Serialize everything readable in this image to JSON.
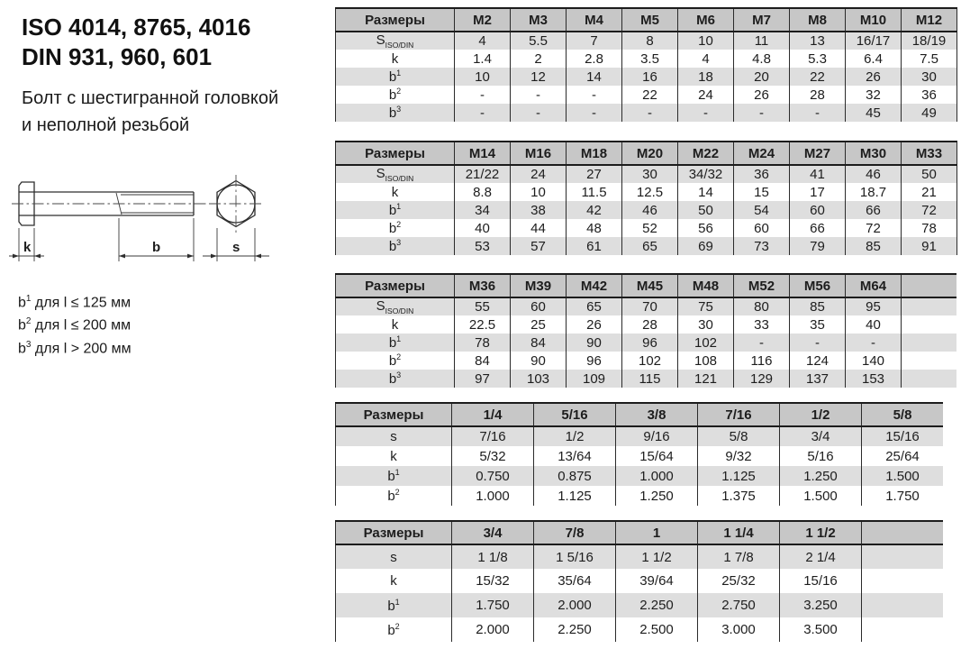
{
  "title": {
    "line1": "ISO 4014, 8765, 4016",
    "line2": "DIN 931, 960, 601"
  },
  "subtitle": {
    "line1": "Болт с шестигранной головкой",
    "line2": "и неполной резьбой"
  },
  "drawing": {
    "dim_k": "k",
    "dim_b": "b",
    "dim_s": "s"
  },
  "notes": [
    {
      "base": "b",
      "sup": "1",
      "text": " для l ≤ 125 мм"
    },
    {
      "base": "b",
      "sup": "2",
      "text": " для l ≤ 200 мм"
    },
    {
      "base": "b",
      "sup": "3",
      "text": " для l > 200 мм"
    }
  ],
  "colors": {
    "header_bg": "#c7c7c7",
    "stripe_bg": "#dedede",
    "border": "#1c1c1c"
  },
  "tables": [
    {
      "header_label": "Размеры",
      "columns": [
        "M2",
        "M3",
        "M4",
        "M5",
        "M6",
        "M7",
        "M8",
        "M10",
        "M12"
      ],
      "trailing_empty_col": false,
      "rows": [
        {
          "label": {
            "base": "S",
            "sub": "ISO/DIN"
          },
          "values": [
            "4",
            "5.5",
            "7",
            "8",
            "10",
            "11",
            "13",
            "16/17",
            "18/19"
          ]
        },
        {
          "label": {
            "base": "k"
          },
          "values": [
            "1.4",
            "2",
            "2.8",
            "3.5",
            "4",
            "4.8",
            "5.3",
            "6.4",
            "7.5"
          ]
        },
        {
          "label": {
            "base": "b",
            "sup": "1"
          },
          "values": [
            "10",
            "12",
            "14",
            "16",
            "18",
            "20",
            "22",
            "26",
            "30"
          ]
        },
        {
          "label": {
            "base": "b",
            "sup": "2"
          },
          "values": [
            "-",
            "-",
            "-",
            "22",
            "24",
            "26",
            "28",
            "32",
            "36"
          ]
        },
        {
          "label": {
            "base": "b",
            "sup": "3"
          },
          "values": [
            "-",
            "-",
            "-",
            "-",
            "-",
            "-",
            "-",
            "45",
            "49"
          ]
        }
      ]
    },
    {
      "header_label": "Размеры",
      "columns": [
        "M14",
        "M16",
        "M18",
        "M20",
        "M22",
        "M24",
        "M27",
        "M30",
        "M33"
      ],
      "trailing_empty_col": false,
      "rows": [
        {
          "label": {
            "base": "S",
            "sub": "ISO/DIN"
          },
          "values": [
            "21/22",
            "24",
            "27",
            "30",
            "34/32",
            "36",
            "41",
            "46",
            "50"
          ]
        },
        {
          "label": {
            "base": "k"
          },
          "values": [
            "8.8",
            "10",
            "11.5",
            "12.5",
            "14",
            "15",
            "17",
            "18.7",
            "21"
          ]
        },
        {
          "label": {
            "base": "b",
            "sup": "1"
          },
          "values": [
            "34",
            "38",
            "42",
            "46",
            "50",
            "54",
            "60",
            "66",
            "72"
          ]
        },
        {
          "label": {
            "base": "b",
            "sup": "2"
          },
          "values": [
            "40",
            "44",
            "48",
            "52",
            "56",
            "60",
            "66",
            "72",
            "78"
          ]
        },
        {
          "label": {
            "base": "b",
            "sup": "3"
          },
          "values": [
            "53",
            "57",
            "61",
            "65",
            "69",
            "73",
            "79",
            "85",
            "91"
          ]
        }
      ]
    },
    {
      "header_label": "Размеры",
      "columns": [
        "M36",
        "M39",
        "M42",
        "M45",
        "M48",
        "M52",
        "M56",
        "M64"
      ],
      "trailing_empty_col": true,
      "rows": [
        {
          "label": {
            "base": "S",
            "sub": "ISO/DIN"
          },
          "values": [
            "55",
            "60",
            "65",
            "70",
            "75",
            "80",
            "85",
            "95"
          ]
        },
        {
          "label": {
            "base": "k"
          },
          "values": [
            "22.5",
            "25",
            "26",
            "28",
            "30",
            "33",
            "35",
            "40"
          ]
        },
        {
          "label": {
            "base": "b",
            "sup": "1"
          },
          "values": [
            "78",
            "84",
            "90",
            "96",
            "102",
            "-",
            "-",
            "-"
          ]
        },
        {
          "label": {
            "base": "b",
            "sup": "2"
          },
          "values": [
            "84",
            "90",
            "96",
            "102",
            "108",
            "116",
            "124",
            "140"
          ]
        },
        {
          "label": {
            "base": "b",
            "sup": "3"
          },
          "values": [
            "97",
            "103",
            "109",
            "115",
            "121",
            "129",
            "137",
            "153"
          ]
        }
      ]
    },
    {
      "header_label": "Размеры",
      "columns": [
        "1/4",
        "5/16",
        "3/8",
        "7/16",
        "1/2",
        "5/8"
      ],
      "trailing_empty_col": false,
      "rows": [
        {
          "label": {
            "base": "s"
          },
          "values": [
            "7/16",
            "1/2",
            "9/16",
            "5/8",
            "3/4",
            "15/16"
          ]
        },
        {
          "label": {
            "base": "k"
          },
          "values": [
            "5/32",
            "13/64",
            "15/64",
            "9/32",
            "5/16",
            "25/64"
          ]
        },
        {
          "label": {
            "base": "b",
            "sup": "1"
          },
          "values": [
            "0.750",
            "0.875",
            "1.000",
            "1.125",
            "1.250",
            "1.500"
          ]
        },
        {
          "label": {
            "base": "b",
            "sup": "2"
          },
          "values": [
            "1.000",
            "1.125",
            "1.250",
            "1.375",
            "1.500",
            "1.750"
          ]
        }
      ]
    },
    {
      "header_label": "Размеры",
      "columns": [
        "3/4",
        "7/8",
        "1",
        "1 1/4",
        "1 1/2"
      ],
      "trailing_empty_col": true,
      "rows": [
        {
          "label": {
            "base": "s"
          },
          "values": [
            "1 1/8",
            "1 5/16",
            "1 1/2",
            "1 7/8",
            "2 1/4"
          ]
        },
        {
          "label": {
            "base": "k"
          },
          "values": [
            "15/32",
            "35/64",
            "39/64",
            "25/32",
            "15/16"
          ]
        },
        {
          "label": {
            "base": "b",
            "sup": "1"
          },
          "values": [
            "1.750",
            "2.000",
            "2.250",
            "2.750",
            "3.250"
          ]
        },
        {
          "label": {
            "base": "b",
            "sup": "2"
          },
          "values": [
            "2.000",
            "2.250",
            "2.500",
            "3.000",
            "3.500"
          ]
        }
      ]
    }
  ]
}
